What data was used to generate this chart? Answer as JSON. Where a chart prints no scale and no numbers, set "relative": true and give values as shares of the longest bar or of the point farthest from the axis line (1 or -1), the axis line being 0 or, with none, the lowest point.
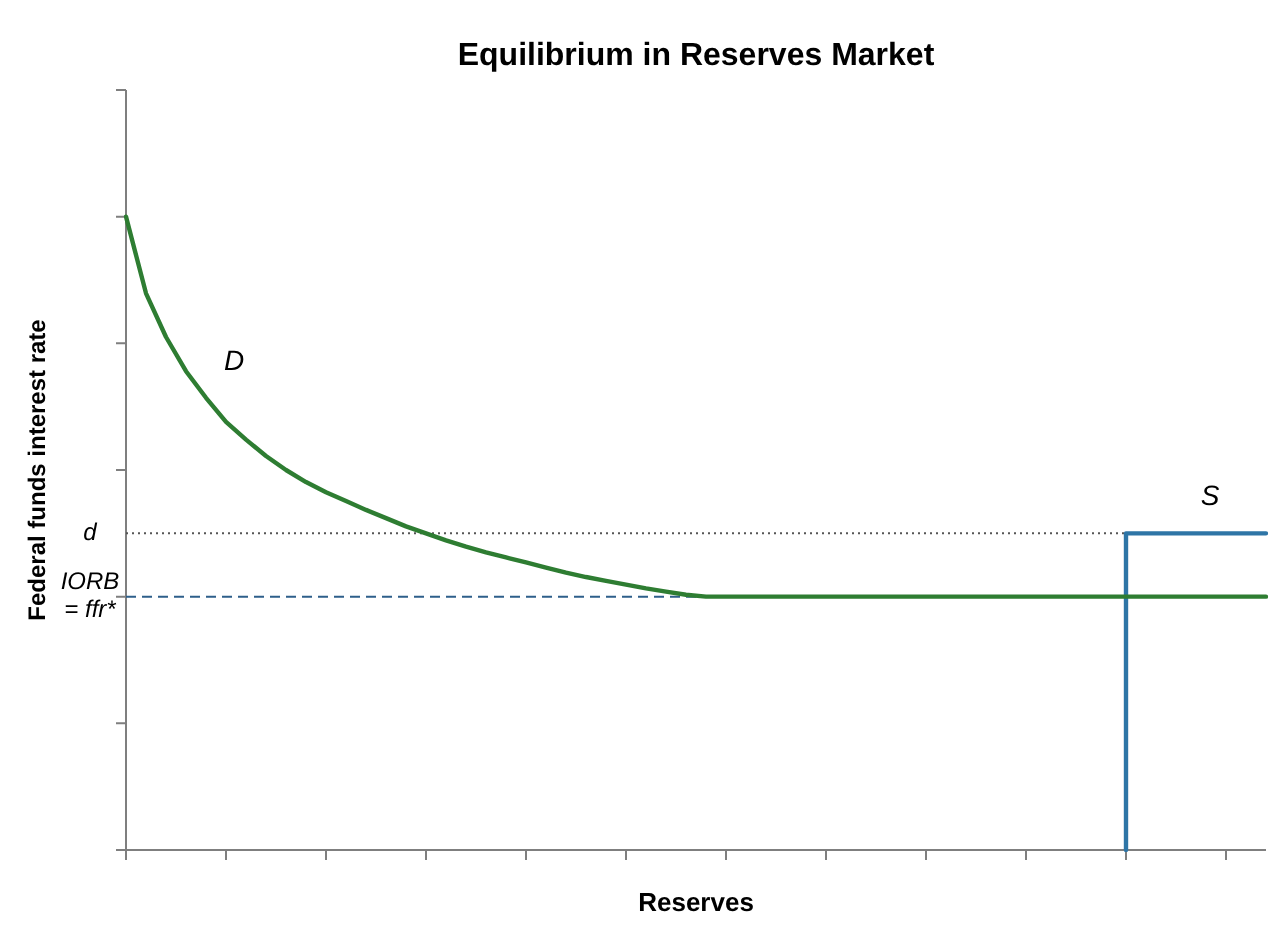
{
  "chart_data": {
    "type": "line",
    "title": "Equilibrium in Reserves Market",
    "xlabel": "Reserves",
    "ylabel": "Federal funds interest rate",
    "relative": true,
    "marker": "none",
    "categories": [
      null,
      null,
      null,
      null,
      null,
      null,
      null,
      null,
      null,
      null,
      null,
      null,
      null,
      null,
      null,
      null,
      null,
      null,
      null,
      null,
      null,
      null,
      null,
      null,
      null,
      null,
      null,
      null,
      null,
      null,
      null,
      null,
      null,
      null,
      null,
      null,
      null,
      null,
      null,
      null,
      null,
      null,
      null,
      null,
      null,
      null,
      null,
      null,
      null,
      null,
      null,
      null,
      null,
      null,
      null,
      null,
      null,
      null
    ],
    "series": [
      {
        "name": "D",
        "type": "line",
        "color": "#2e7d32",
        "values": [
          1.0,
          0.879,
          0.81,
          0.756,
          0.714,
          0.676,
          0.648,
          0.622,
          0.6,
          0.581,
          0.565,
          0.551,
          0.537,
          0.524,
          0.511,
          0.5,
          0.489,
          0.479,
          0.47,
          0.462,
          0.454,
          0.446,
          0.438,
          0.431,
          0.425,
          0.419,
          0.413,
          0.408,
          0.403,
          0.4,
          0.4,
          0.4,
          0.4,
          0.4,
          0.4,
          0.4,
          0.4,
          0.4,
          0.4,
          0.4,
          0.4,
          0.4,
          0.4,
          0.4,
          0.4,
          0.4,
          0.4,
          0.4,
          0.4,
          0.4,
          0.4,
          0.4,
          0.4,
          0.4,
          0.4,
          0.4,
          0.4,
          0.4
        ]
      },
      {
        "name": "S",
        "type": "step",
        "color": "#2e75a6",
        "values": [
          null,
          null,
          null,
          null,
          null,
          null,
          null,
          null,
          null,
          null,
          null,
          null,
          null,
          null,
          null,
          null,
          null,
          null,
          null,
          null,
          null,
          null,
          null,
          null,
          null,
          null,
          null,
          null,
          null,
          null,
          null,
          null,
          null,
          null,
          null,
          null,
          null,
          null,
          null,
          null,
          null,
          null,
          null,
          null,
          null,
          null,
          null,
          null,
          null,
          null,
          0,
          0.5,
          0.5,
          0.5,
          0.5,
          0.5,
          0.5,
          0.5
        ]
      }
    ],
    "ref_lines": [
      {
        "axis": "y",
        "value": 0.5,
        "label": "d",
        "color": "#555555",
        "line_style": "dotted"
      },
      {
        "axis": "y",
        "value": 0.4,
        "label": "IORB = ffr*",
        "color": "#2e5f8a",
        "line_style": "dashed"
      }
    ]
  }
}
